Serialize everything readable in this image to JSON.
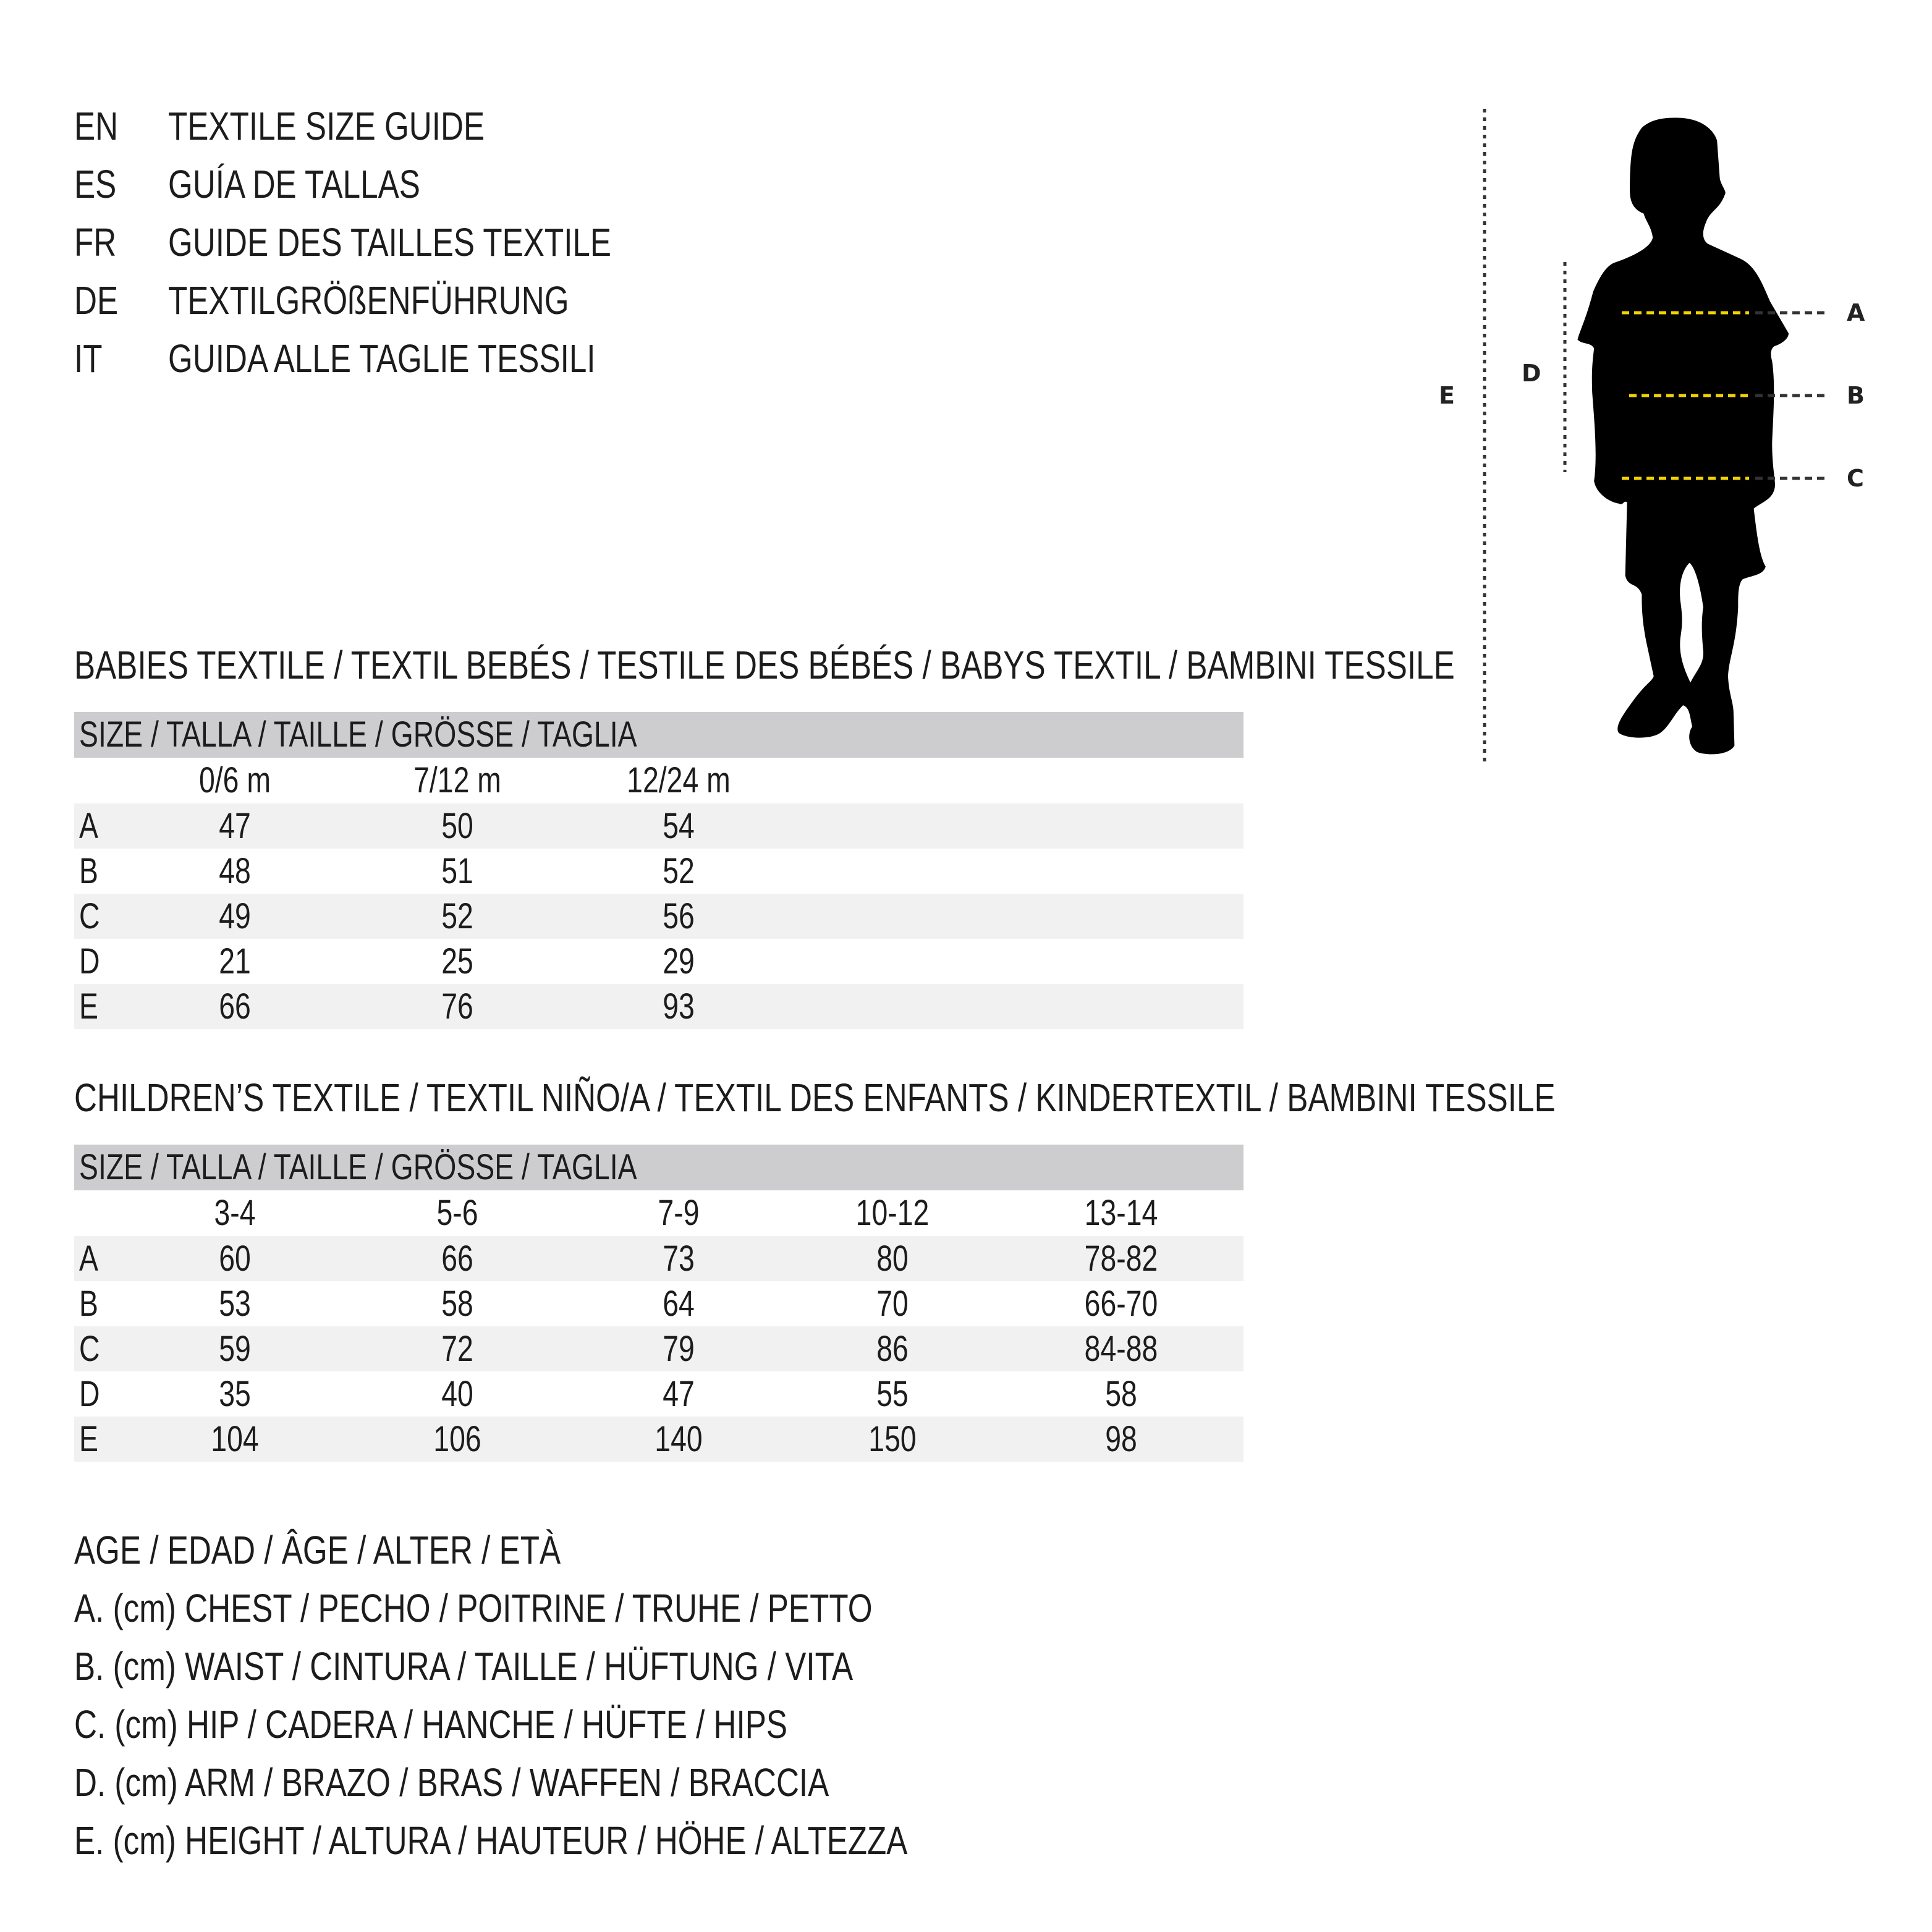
{
  "titles": [
    {
      "code": "EN",
      "text": "TEXTILE SIZE GUIDE"
    },
    {
      "code": "ES",
      "text": "GUÍA DE TALLAS"
    },
    {
      "code": "FR",
      "text": "GUIDE DES TAILLES TEXTILE"
    },
    {
      "code": "DE",
      "text": "TEXTILGRÖßENFÜHRUNG"
    },
    {
      "code": "IT",
      "text": "GUIDA ALLE TAGLIE TESSILI"
    }
  ],
  "figure": {
    "labels": {
      "A": "A",
      "B": "B",
      "C": "C",
      "D": "D",
      "E": "E"
    },
    "marker_color": "#f2d400",
    "icon": "child-silhouette-icon"
  },
  "babies": {
    "heading": "BABIES TEXTILE / TEXTIL BEBÉS / TESTILE DES BÉBÉS / BABYS TEXTIL / BAMBINI TESSILE",
    "size_header": "SIZE / TALLA / TAILLE / GRÖSSE / TAGLIA",
    "columns": [
      "0/6 m",
      "7/12 m",
      "12/24 m"
    ],
    "rows": [
      {
        "label": "A",
        "values": [
          "47",
          "50",
          "54"
        ]
      },
      {
        "label": "B",
        "values": [
          "48",
          "51",
          "52"
        ]
      },
      {
        "label": "C",
        "values": [
          "49",
          "52",
          "56"
        ]
      },
      {
        "label": "D",
        "values": [
          "21",
          "25",
          "29"
        ]
      },
      {
        "label": "E",
        "values": [
          "66",
          "76",
          "93"
        ]
      }
    ]
  },
  "children": {
    "heading": "CHILDREN’S TEXTILE / TEXTIL NIÑO/A / TEXTIL DES ENFANTS / KINDERTEXTIL / BAMBINI TESSILE",
    "size_header": "SIZE / TALLA / TAILLE / GRÖSSE / TAGLIA",
    "columns": [
      "3-4",
      "5-6",
      "7-9",
      "10-12",
      "13-14"
    ],
    "rows": [
      {
        "label": "A",
        "values": [
          "60",
          "66",
          "73",
          "80",
          "78-82"
        ]
      },
      {
        "label": "B",
        "values": [
          "53",
          "58",
          "64",
          "70",
          "66-70"
        ]
      },
      {
        "label": "C",
        "values": [
          "59",
          "72",
          "79",
          "86",
          "84-88"
        ]
      },
      {
        "label": "D",
        "values": [
          "35",
          "40",
          "47",
          "55",
          "58"
        ]
      },
      {
        "label": "E",
        "values": [
          "104",
          "106",
          "140",
          "150",
          "98"
        ]
      }
    ]
  },
  "legend": [
    "AGE / EDAD / ÂGE / ALTER / ETÀ",
    "A. (cm) CHEST / PECHO / POITRINE / TRUHE / PETTO",
    "B. (cm) WAIST / CINTURA / TAILLE / HÜFTUNG / VITA",
    "C. (cm) HIP / CADERA / HANCHE / HÜFTE / HIPS",
    "D. (cm) ARM / BRAZO / BRAS / WAFFEN / BRACCIA",
    "E. (cm) HEIGHT / ALTURA / HAUTEUR / HÖHE / ALTEZZA"
  ]
}
